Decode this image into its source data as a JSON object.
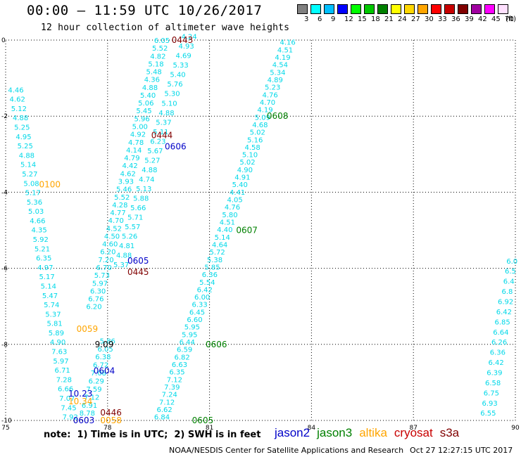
{
  "header": {
    "title": "00:00 – 11:59 UTC 10/26/2017",
    "subtitle": "12 hour collection of altimeter wave heights"
  },
  "color_scale": {
    "unit_label": "(ft)",
    "bins": [
      {
        "label": "3",
        "color": "#808080"
      },
      {
        "label": "6",
        "color": "#00ffff"
      },
      {
        "label": "9",
        "color": "#00bfff"
      },
      {
        "label": "12",
        "color": "#0000ff"
      },
      {
        "label": "15",
        "color": "#00ff00"
      },
      {
        "label": "18",
        "color": "#00c800"
      },
      {
        "label": "21",
        "color": "#008000"
      },
      {
        "label": "24",
        "color": "#ffff00"
      },
      {
        "label": "27",
        "color": "#ffd700"
      },
      {
        "label": "30",
        "color": "#ffa500"
      },
      {
        "label": "33",
        "color": "#ff0000"
      },
      {
        "label": "36",
        "color": "#c80000"
      },
      {
        "label": "39",
        "color": "#800000"
      },
      {
        "label": "42",
        "color": "#a000a0"
      },
      {
        "label": "45",
        "color": "#ff00ff"
      },
      {
        "label": "70",
        "color": "#ffe0ff"
      }
    ]
  },
  "map": {
    "x_ticks": [
      "75",
      "78",
      "81",
      "84",
      "87",
      "90"
    ],
    "y_ticks": [
      "0",
      "-2",
      "-4",
      "-6",
      "-8",
      "-10"
    ],
    "lon_range": [
      75,
      90
    ],
    "lat_range": [
      -10,
      0
    ],
    "track_color": "#00d8e8",
    "tracks": [
      {
        "values": [
          "4.46",
          "4.62",
          "5.12",
          "4.88",
          "5.25",
          "4.95",
          "5.25",
          "4.88",
          "5.14",
          "5.27",
          "5.08",
          "5.17",
          "5.36",
          "5.03",
          "4.66",
          "4.35",
          "5.92",
          "5.21",
          "6.35",
          "4.97",
          "5.17",
          "5.14",
          "5.47",
          "5.74",
          "5.37",
          "5.81",
          "5.89",
          "4.90",
          "7.63",
          "5.97",
          "6.71",
          "7.28",
          "6.66",
          "7.07",
          "7.45",
          "7.92"
        ],
        "lon_start": 75.3,
        "lat_start": -1.3,
        "lon_end": 76.9,
        "lat_end": -9.9
      },
      {
        "values": [
          "6.05",
          "5.52",
          "4.82",
          "5.18",
          "5.48",
          "4.36",
          "4.88",
          "5.40",
          "5.06",
          "5.45",
          "5.96",
          "5.00",
          "4.92",
          "4.78",
          "4.14",
          "4.79",
          "4.42",
          "4.62",
          "3.93",
          "5.46",
          "5.52",
          "4.28",
          "4.77",
          "4.70",
          "4.52",
          "4.50",
          "4.60",
          "6.20",
          "7.20",
          "6.70",
          "5.73",
          "5.97",
          "6.30",
          "6.76",
          "6.20"
        ],
        "lon_start": 79.6,
        "lat_start": 0.0,
        "lon_end": 77.6,
        "lat_end": -7.0
      },
      {
        "values": [
          "4.24",
          "4.93",
          "4.69",
          "5.33",
          "5.40",
          "5.76",
          "5.30",
          "5.10",
          "4.88",
          "5.37",
          "5.11",
          "6.23",
          "5.67",
          "5.27",
          "4.88",
          "4.74",
          "5.13",
          "5.88",
          "5.66",
          "5.71",
          "5.57",
          "5.26",
          "4.81",
          "4.88",
          "5.37"
        ],
        "lon_start": 80.4,
        "lat_start": 0.1,
        "lon_end": 78.4,
        "lat_end": -5.9
      },
      {
        "values": [
          "5.86",
          "6.05",
          "6.38",
          "6.72",
          "7.08",
          "6.29",
          "7.59",
          "7.12",
          "6.91",
          "8.78"
        ],
        "lon_start": 78.0,
        "lat_start": -7.9,
        "lon_end": 77.4,
        "lat_end": -9.8
      },
      {
        "values": [
          "4.16",
          "4.51",
          "4.19",
          "4.54",
          "5.34",
          "4.89",
          "5.23",
          "4.76",
          "4.70",
          "4.19",
          "5.09",
          "4.68",
          "5.02",
          "5.16",
          "4.58",
          "5.10",
          "5.02",
          "4.90",
          "4.91",
          "5.40",
          "4.41",
          "4.05",
          "4.76",
          "5.80",
          "4.51",
          "4.40",
          "5.14",
          "4.64",
          "5.72",
          "5.38",
          "5.85",
          "6.36",
          "5.54",
          "6.42",
          "6.00",
          "6.33",
          "6.45",
          "6.60",
          "5.95",
          "5.95",
          "6.44",
          "6.59",
          "6.82",
          "6.63",
          "6.35",
          "7.12",
          "7.39",
          "7.24",
          "7.12",
          "6.62",
          "6.84"
        ],
        "lon_start": 83.3,
        "lat_start": -0.05,
        "lon_end": 79.6,
        "lat_end": -9.9
      },
      {
        "values": [
          "6.0",
          "6.5",
          "6.4",
          "6.8",
          "6.92",
          "6.42",
          "6.85",
          "6.64",
          "6.26",
          "6.36",
          "6.42",
          "6.39",
          "6.58",
          "6.75",
          "6.93",
          "6.55"
        ],
        "lon_start": 89.9,
        "lat_start": -5.8,
        "lon_end": 89.2,
        "lat_end": -9.8
      }
    ],
    "pass_labels": [
      {
        "text": "0443",
        "color": "#800000",
        "lon": 80.2,
        "lat": 0.0
      },
      {
        "text": "0608",
        "color": "#008000",
        "lon": 83.0,
        "lat": -2.0
      },
      {
        "text": "0444",
        "color": "#800000",
        "lon": 79.6,
        "lat": -2.5
      },
      {
        "text": "0606",
        "color": "#0000c8",
        "lon": 80.0,
        "lat": -2.8
      },
      {
        "text": "0100",
        "color": "#ffa500",
        "lon": 76.3,
        "lat": -3.8
      },
      {
        "text": "0607",
        "color": "#008000",
        "lon": 82.1,
        "lat": -5.0
      },
      {
        "text": "0605",
        "color": "#0000c8",
        "lon": 78.9,
        "lat": -5.8
      },
      {
        "text": "0445",
        "color": "#800000",
        "lon": 78.9,
        "lat": -6.1
      },
      {
        "text": "0059",
        "color": "#ffa500",
        "lon": 77.4,
        "lat": -7.6
      },
      {
        "text": "0606",
        "color": "#008000",
        "lon": 81.2,
        "lat": -8.0
      },
      {
        "text": "0604",
        "color": "#0000c8",
        "lon": 77.9,
        "lat": -8.7
      },
      {
        "text": "0446",
        "color": "#800000",
        "lon": 78.1,
        "lat": -9.8
      },
      {
        "text": "0603",
        "color": "#0000c8",
        "lon": 77.3,
        "lat": -10.0
      },
      {
        "text": "0058",
        "color": "#ffa500",
        "lon": 78.1,
        "lat": -10.0
      },
      {
        "text": "0605",
        "color": "#008000",
        "lon": 80.8,
        "lat": -10.0
      },
      {
        "text": "9.09",
        "color": "#000000",
        "lon": 77.9,
        "lat": -8.0
      },
      {
        "text": "10.23",
        "color": "#0000c8",
        "lon": 77.2,
        "lat": -9.3
      },
      {
        "text": "10.34",
        "color": "#ffa500",
        "lon": 77.2,
        "lat": -9.5
      }
    ]
  },
  "notes": {
    "note": "note:  1) Time is in UTC;  2) SWH is in feet"
  },
  "legend": {
    "items": [
      {
        "label": "jason2",
        "color": "#0000c8"
      },
      {
        "label": "jason3",
        "color": "#008000"
      },
      {
        "label": "altika",
        "color": "#ffa500"
      },
      {
        "label": "cryosat",
        "color": "#c80000"
      },
      {
        "label": "s3a",
        "color": "#800000"
      }
    ]
  },
  "footer": {
    "left": "NOAA/NESDIS Center for Satellite Applications and Research",
    "right": "Oct 27 12:27:15 UTC 2017"
  }
}
